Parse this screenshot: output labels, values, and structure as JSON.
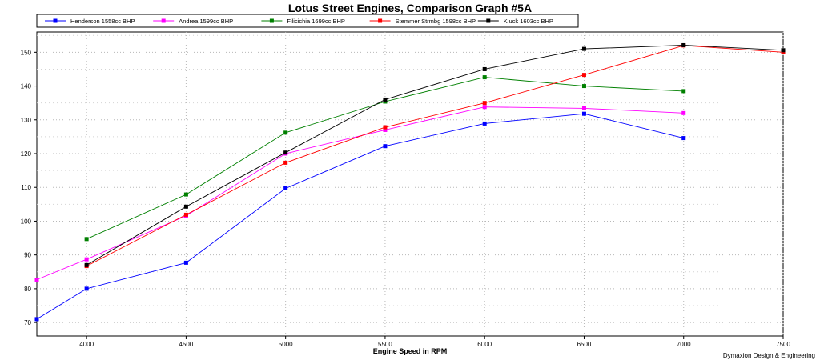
{
  "chart_data": {
    "type": "line",
    "title": "Lotus Street Engines, Comparison Graph #5A",
    "xlabel": "Engine Speed in RPM",
    "ylabel": "",
    "credit": "Dymaxion Design & Engineering",
    "xlim": [
      3750,
      7500
    ],
    "ylim": [
      66,
      156
    ],
    "xticks": [
      4000,
      4500,
      5000,
      5500,
      6000,
      6500,
      7000,
      7500
    ],
    "yticks": [
      70,
      80,
      90,
      100,
      110,
      120,
      130,
      140,
      150
    ],
    "grid": true,
    "legend_position": "top",
    "series": [
      {
        "name": "Henderson 1558cc BHP",
        "color": "#0000ff",
        "x": [
          3750,
          4000,
          4500,
          5000,
          5500,
          6000,
          6500,
          7000
        ],
        "y": [
          71,
          80,
          87.7,
          109.7,
          122.2,
          128.9,
          131.8,
          124.6
        ]
      },
      {
        "name": "Andrea 1599cc BHP",
        "color": "#ff00ff",
        "x": [
          3750,
          4000,
          4500,
          5000,
          5500,
          6000,
          6500,
          7000
        ],
        "y": [
          82.7,
          88.7,
          101.6,
          120,
          127,
          133.8,
          133.4,
          132
        ]
      },
      {
        "name": "Filicichia 1699cc BHP",
        "color": "#008000",
        "x": [
          4000,
          4500,
          5000,
          5500,
          6000,
          6500,
          7000
        ],
        "y": [
          94.7,
          107.9,
          126.2,
          135.4,
          142.6,
          140,
          138.5
        ]
      },
      {
        "name": "Stemmer Strmbg 1598cc BHP",
        "color": "#ff0000",
        "x": [
          4000,
          4500,
          5000,
          5500,
          6000,
          6500,
          7000,
          7500
        ],
        "y": [
          86.7,
          101.9,
          117.3,
          127.8,
          135,
          143.3,
          152,
          150
        ]
      },
      {
        "name": "Kluck 1603cc BHP",
        "color": "#000000",
        "x": [
          4000,
          4500,
          5000,
          5500,
          6000,
          6500,
          7000,
          7500
        ],
        "y": [
          87,
          104.3,
          120.3,
          136,
          145,
          151,
          152.1,
          150.6
        ]
      }
    ]
  }
}
